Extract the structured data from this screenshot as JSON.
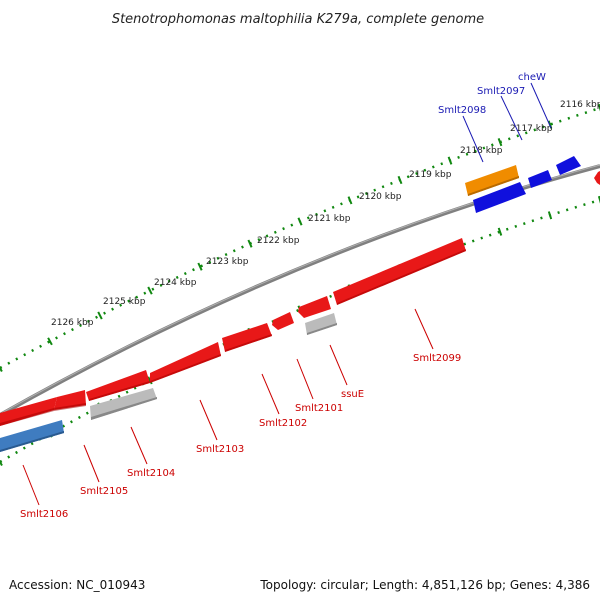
{
  "title": "Stenotrophomonas maltophilia K279a, complete genome",
  "footer": {
    "accession": "Accession: NC_010943",
    "topology": "Topology: circular; Length: 4,851,126 bp; Genes: 4,386"
  },
  "scale_ticks": [
    "2116 kbp",
    "2117 kbp",
    "2118 kbp",
    "2119 kbp",
    "2120 kbp",
    "2121 kbp",
    "2122 kbp",
    "2123 kbp",
    "2124 kbp",
    "2125 kbp",
    "2126 kbp"
  ],
  "colors": {
    "forward_gene": "#e81818",
    "reverse_gene_blue": "#1010dd",
    "gene_orange": "#f08c00",
    "gene_gray": "#bbbbbb",
    "gene_steelblue": "#3f7cc0",
    "backbone": "#808080",
    "tick_dots": "#118811",
    "label_red": "#cc0000",
    "label_blue": "#1a1ab3"
  },
  "genes": [
    {
      "name": "Smlt2106",
      "color": "steelblue",
      "strand": "outer"
    },
    {
      "name": "Smlt2105",
      "color": "red",
      "strand": "inner"
    },
    {
      "name": "Smlt2104",
      "color": "gray",
      "strand": "inner"
    },
    {
      "name": "Smlt2103",
      "color": "red",
      "strand": "inner"
    },
    {
      "name": "Smlt2102",
      "color": "red",
      "strand": "inner"
    },
    {
      "name": "Smlt2101",
      "color": "red",
      "strand": "inner"
    },
    {
      "name": "ssuE",
      "color": "gray",
      "strand": "inner"
    },
    {
      "name": "Smlt2099",
      "color": "red",
      "strand": "inner"
    },
    {
      "name": "Smlt2098",
      "color": "blue",
      "strand": "outer"
    },
    {
      "name": "Smlt2097",
      "color": "blue",
      "strand": "outer"
    },
    {
      "name": "cheW",
      "color": "blue",
      "strand": "outer"
    }
  ]
}
